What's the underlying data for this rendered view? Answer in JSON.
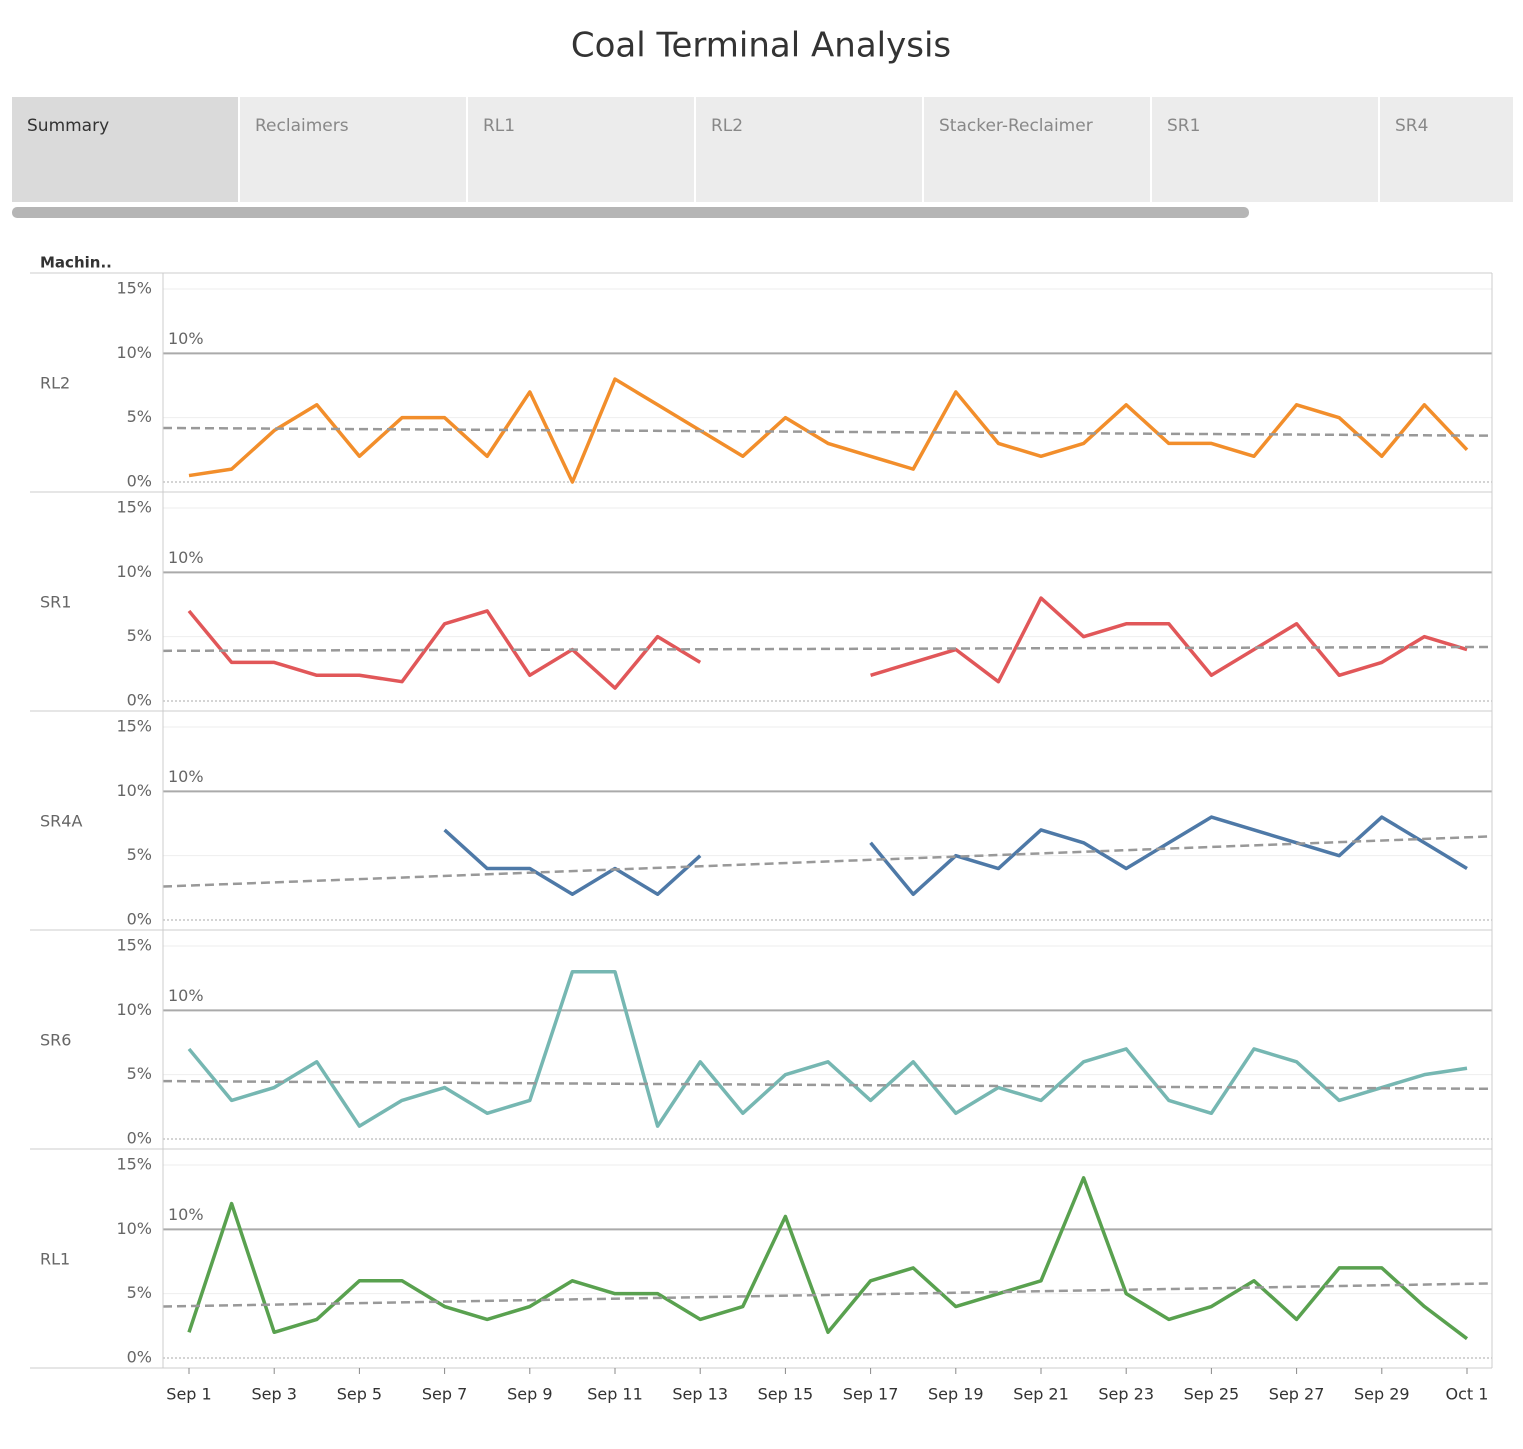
{
  "tabs": [
    "Summary",
    "Reclaimers",
    "RL1",
    "RL2",
    "Stacker-Reclaimer",
    "SR1",
    "SR4"
  ],
  "chart_data": {
    "type": "line",
    "title": "Coal Terminal Analysis",
    "row_header": "Machin..",
    "x": [
      "Sep 1",
      "Sep 2",
      "Sep 3",
      "Sep 4",
      "Sep 5",
      "Sep 6",
      "Sep 7",
      "Sep 8",
      "Sep 9",
      "Sep 10",
      "Sep 11",
      "Sep 12",
      "Sep 13",
      "Sep 14",
      "Sep 15",
      "Sep 16",
      "Sep 17",
      "Sep 18",
      "Sep 19",
      "Sep 20",
      "Sep 21",
      "Sep 22",
      "Sep 23",
      "Sep 24",
      "Sep 25",
      "Sep 26",
      "Sep 27",
      "Sep 28",
      "Sep 29",
      "Sep 30",
      "Oct 1"
    ],
    "xticks": [
      "Sep 1",
      "Sep 3",
      "Sep 5",
      "Sep 7",
      "Sep 9",
      "Sep 11",
      "Sep 13",
      "Sep 15",
      "Sep 17",
      "Sep 19",
      "Sep 21",
      "Sep 23",
      "Sep 25",
      "Sep 27",
      "Sep 29",
      "Oct 1"
    ],
    "ylim": [
      0,
      15
    ],
    "yticks": [
      {
        "value": 0,
        "label": "0%"
      },
      {
        "value": 5,
        "label": "5%"
      },
      {
        "value": 10,
        "label": "10%"
      },
      {
        "value": 15,
        "label": "15%"
      }
    ],
    "reference": {
      "value": 10,
      "label": "10%"
    },
    "series": [
      {
        "name": "RL2",
        "color": "#f28e2b",
        "trend": [
          4.2,
          3.6
        ],
        "values": [
          0.5,
          1,
          4,
          6,
          2,
          5,
          5,
          2,
          7,
          0,
          8,
          6,
          4,
          2,
          5,
          3,
          2,
          1,
          7,
          3,
          2,
          3,
          6,
          3,
          3,
          2,
          6,
          5,
          2,
          6,
          2.5
        ]
      },
      {
        "name": "SR1",
        "color": "#e15759",
        "trend": [
          3.9,
          4.2
        ],
        "values": [
          7,
          3,
          3,
          2,
          2,
          1.5,
          6,
          7,
          2,
          4,
          1,
          5,
          3,
          null,
          null,
          null,
          2,
          3,
          4,
          1.5,
          8,
          5,
          6,
          6,
          2,
          4,
          6,
          2,
          3,
          5,
          4
        ]
      },
      {
        "name": "SR4A",
        "color": "#4e79a7",
        "trend": [
          2.6,
          6.5
        ],
        "values": [
          null,
          null,
          null,
          null,
          null,
          null,
          7,
          4,
          4,
          2,
          4,
          2,
          5,
          null,
          null,
          null,
          6,
          2,
          5,
          4,
          7,
          6,
          4,
          6,
          8,
          7,
          6,
          5,
          8,
          6,
          4
        ]
      },
      {
        "name": "SR6",
        "color": "#76b7b2",
        "trend": [
          4.5,
          3.9
        ],
        "values": [
          7,
          3,
          4,
          6,
          1,
          3,
          4,
          2,
          3,
          13,
          13,
          1,
          6,
          2,
          5,
          6,
          3,
          6,
          2,
          4,
          3,
          6,
          7,
          3,
          2,
          7,
          6,
          3,
          4,
          5,
          5.5
        ]
      },
      {
        "name": "RL1",
        "color": "#59a14f",
        "trend": [
          4,
          5.8
        ],
        "values": [
          2,
          12,
          2,
          3,
          6,
          6,
          4,
          3,
          4,
          6,
          5,
          5,
          3,
          4,
          11,
          2,
          6,
          7,
          4,
          5,
          6,
          14,
          5,
          3,
          4,
          6,
          3,
          7,
          7,
          4,
          1.5
        ]
      }
    ]
  }
}
